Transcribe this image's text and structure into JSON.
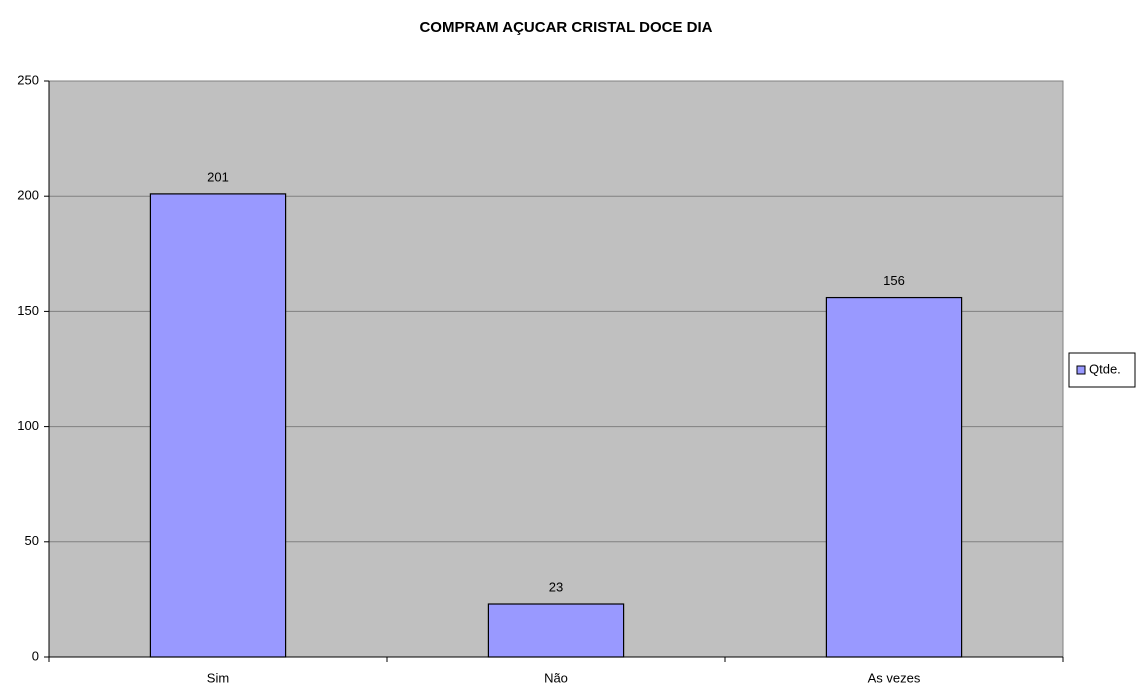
{
  "chart_data": {
    "type": "bar",
    "title": "COMPRAM AÇUCAR CRISTAL DOCE DIA",
    "categories": [
      "Sim",
      "Não",
      "As vezes"
    ],
    "series": [
      {
        "name": "Qtde.",
        "color": "#9999ff",
        "values": [
          201,
          23,
          156
        ]
      }
    ],
    "ylim": [
      0,
      250
    ],
    "yticks": [
      0,
      50,
      100,
      150,
      200,
      250
    ],
    "grid": true,
    "legend": "right"
  }
}
